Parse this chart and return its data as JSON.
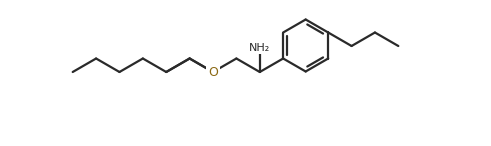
{
  "bg_color": "#ffffff",
  "line_color": "#2a2a2a",
  "bond_lw": 1.6,
  "label_NH2": "NH₂",
  "label_O": "O",
  "figsize": [
    4.91,
    1.46
  ],
  "dpi": 100,
  "O_color": "#8B6914"
}
